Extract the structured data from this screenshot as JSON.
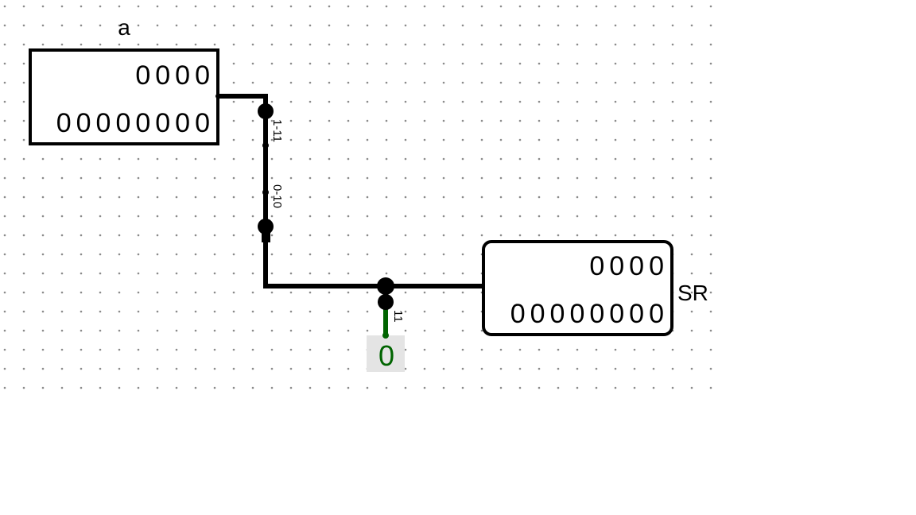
{
  "register_a": {
    "label": "a",
    "high_bits": "0000",
    "low_bits": "00000000"
  },
  "register_sr": {
    "label": "SR",
    "high_bits": "0000",
    "low_bits": "00000000"
  },
  "splitter_top": {
    "label_upper": "1-11",
    "label_lower": "0-10"
  },
  "splitter_bottom": {
    "label": "11"
  },
  "probe": {
    "value": "0"
  },
  "colors": {
    "wire": "#000000",
    "active_wire": "#006400",
    "probe_background": "#e4e4e4",
    "grid_dot": "#8a8a8a"
  }
}
